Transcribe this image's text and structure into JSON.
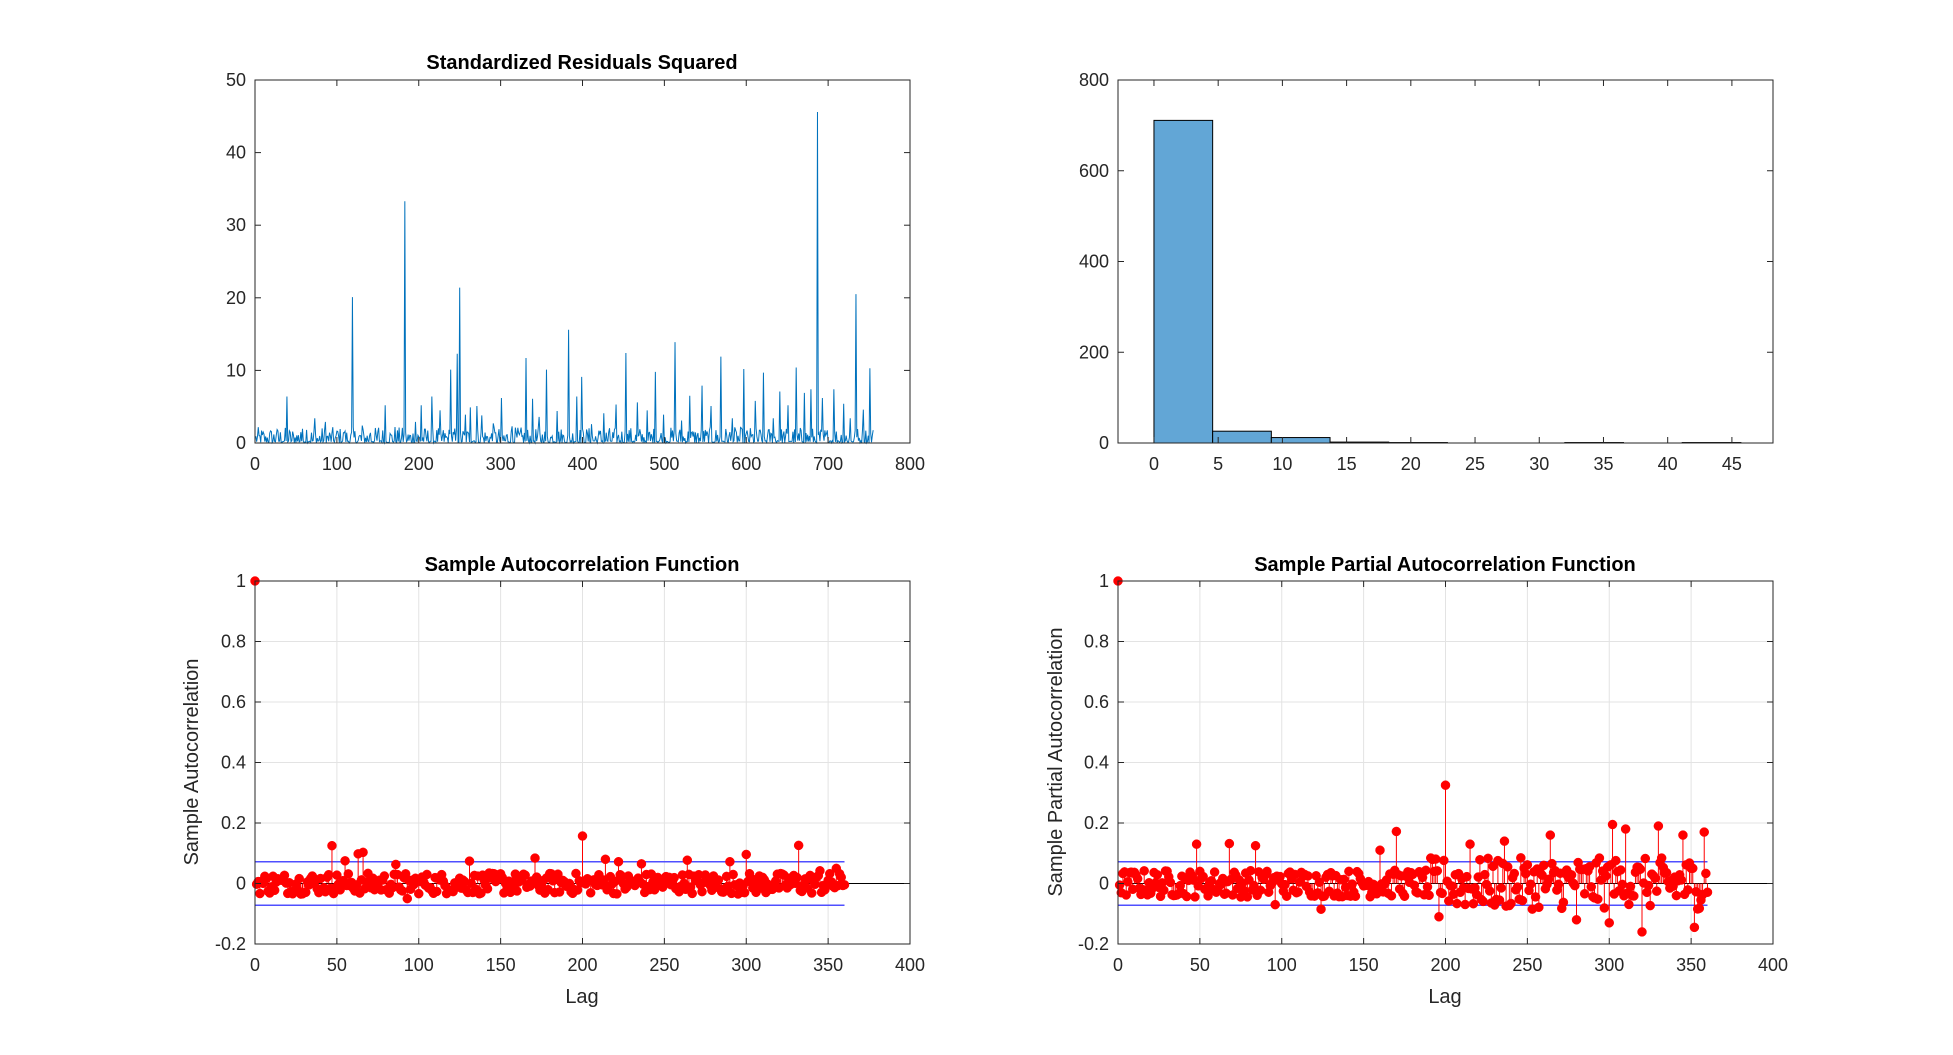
{
  "colors": {
    "line": "#0072BD",
    "hist_fill": "#62A6D6",
    "stem": "#FF0000",
    "bounds": "#4F4FFF",
    "axis": "#262626",
    "grid": "#E3E3E3"
  },
  "chart_data": [
    {
      "id": "residuals",
      "type": "line",
      "title": "Standardized Residuals Squared",
      "xlabel": "",
      "ylabel": "",
      "xlim": [
        0,
        800
      ],
      "ylim": [
        0,
        50
      ],
      "xticks": [
        "0",
        "100",
        "200",
        "300",
        "400",
        "500",
        "600",
        "700",
        "800"
      ],
      "yticks": [
        "0",
        "10",
        "20",
        "30",
        "40",
        "50"
      ],
      "grid": false,
      "n": 755,
      "spikes": [
        [
          12,
          0.9
        ],
        [
          25,
          1.1
        ],
        [
          38,
          6.4
        ],
        [
          55,
          1.5
        ],
        [
          62,
          1.8
        ],
        [
          72,
          3.4
        ],
        [
          85,
          2.9
        ],
        [
          100,
          1.6
        ],
        [
          108,
          1.4
        ],
        [
          118,
          20.1
        ],
        [
          130,
          2.4
        ],
        [
          140,
          1.4
        ],
        [
          150,
          2.1
        ],
        [
          158,
          5.2
        ],
        [
          170,
          2.2
        ],
        [
          182,
          33.3
        ],
        [
          195,
          2.9
        ],
        [
          202,
          5.2
        ],
        [
          215,
          6.4
        ],
        [
          225,
          4.5
        ],
        [
          238,
          10.1
        ],
        [
          246,
          12.3
        ],
        [
          249,
          21.4
        ],
        [
          256,
          3.9
        ],
        [
          262,
          4.9
        ],
        [
          270,
          5.1
        ],
        [
          276,
          3.8
        ],
        [
          290,
          2.7
        ],
        [
          300,
          6.2
        ],
        [
          313,
          2.3
        ],
        [
          330,
          11.7
        ],
        [
          338,
          6.1
        ],
        [
          346,
          3.6
        ],
        [
          355,
          10.1
        ],
        [
          368,
          4.4
        ],
        [
          382,
          15.6
        ],
        [
          392,
          6.4
        ],
        [
          398,
          9.1
        ],
        [
          410,
          2.6
        ],
        [
          425,
          4.1
        ],
        [
          440,
          5.3
        ],
        [
          452,
          12.4
        ],
        [
          466,
          5.6
        ],
        [
          478,
          4.5
        ],
        [
          488,
          9.8
        ],
        [
          498,
          3.9
        ],
        [
          512,
          13.9
        ],
        [
          520,
          3.1
        ],
        [
          530,
          6.5
        ],
        [
          545,
          7.9
        ],
        [
          556,
          5.1
        ],
        [
          568,
          11.9
        ],
        [
          582,
          3.4
        ],
        [
          596,
          10.2
        ],
        [
          610,
          5.8
        ],
        [
          620,
          9.7
        ],
        [
          632,
          3.4
        ],
        [
          640,
          7.1
        ],
        [
          650,
          5.2
        ],
        [
          660,
          10.4
        ],
        [
          670,
          6.9
        ],
        [
          678,
          7.4
        ],
        [
          686,
          45.6
        ],
        [
          692,
          6.2
        ],
        [
          706,
          7.4
        ],
        [
          718,
          5.4
        ],
        [
          726,
          3.4
        ],
        [
          733,
          20.5
        ],
        [
          742,
          4.6
        ],
        [
          750,
          10.3
        ]
      ]
    },
    {
      "id": "histogram",
      "type": "bar",
      "title": "",
      "xlabel": "",
      "ylabel": "",
      "xlim": [
        -2.8,
        48.2
      ],
      "ylim": [
        0,
        800
      ],
      "xticks": [
        "0",
        "5",
        "10",
        "15",
        "20",
        "25",
        "30",
        "35",
        "40",
        "45"
      ],
      "yticks": [
        "0",
        "200",
        "400",
        "600",
        "800"
      ],
      "grid": false,
      "bin_edges": [
        0,
        4.57,
        9.14,
        13.71,
        18.28,
        22.85,
        27.42,
        31.99,
        36.56,
        41.13,
        45.7
      ],
      "counts": [
        711,
        26,
        12,
        2,
        1,
        0,
        0,
        1,
        0,
        1
      ]
    },
    {
      "id": "acf",
      "type": "stem",
      "title": "Sample Autocorrelation Function",
      "xlabel": "Lag",
      "ylabel": "Sample Autocorrelation",
      "xlim": [
        0,
        400
      ],
      "ylim": [
        -0.2,
        1
      ],
      "xticks": [
        "0",
        "50",
        "100",
        "150",
        "200",
        "250",
        "300",
        "350",
        "400"
      ],
      "yticks": [
        "-0.2",
        "0",
        "0.2",
        "0.4",
        "0.6",
        "0.8",
        "1"
      ],
      "grid": true,
      "num_lags": 360,
      "bounds": [
        0.072,
        -0.072
      ],
      "values_sampled": [
        [
          0,
          1.0
        ],
        [
          47,
          0.125
        ],
        [
          55,
          0.075
        ],
        [
          63,
          0.098
        ],
        [
          66,
          0.103
        ],
        [
          86,
          0.063
        ],
        [
          93,
          -0.05
        ],
        [
          131,
          0.074
        ],
        [
          150,
          0.032
        ],
        [
          171,
          0.084
        ],
        [
          200,
          0.157
        ],
        [
          214,
          0.08
        ],
        [
          222,
          0.072
        ],
        [
          236,
          0.065
        ],
        [
          264,
          0.077
        ],
        [
          290,
          0.072
        ],
        [
          300,
          0.096
        ],
        [
          332,
          0.126
        ],
        [
          345,
          0.042
        ],
        [
          355,
          0.05
        ]
      ]
    },
    {
      "id": "pacf",
      "type": "stem",
      "title": "Sample Partial Autocorrelation Function",
      "xlabel": "Lag",
      "ylabel": "Sample Partial Autocorrelation",
      "xlim": [
        0,
        400
      ],
      "ylim": [
        -0.2,
        1
      ],
      "xticks": [
        "0",
        "50",
        "100",
        "150",
        "200",
        "250",
        "300",
        "350",
        "400"
      ],
      "yticks": [
        "-0.2",
        "0",
        "0.2",
        "0.4",
        "0.6",
        "0.8",
        "1"
      ],
      "grid": true,
      "num_lags": 360,
      "bounds": [
        0.072,
        -0.072
      ],
      "values_sampled": [
        [
          0,
          1.0
        ],
        [
          48,
          0.13
        ],
        [
          68,
          0.132
        ],
        [
          84,
          0.125
        ],
        [
          96,
          -0.07
        ],
        [
          124,
          -0.085
        ],
        [
          160,
          0.11
        ],
        [
          170,
          0.172
        ],
        [
          196,
          -0.11
        ],
        [
          200,
          0.325
        ],
        [
          215,
          0.13
        ],
        [
          236,
          0.14
        ],
        [
          264,
          0.16
        ],
        [
          280,
          -0.12
        ],
        [
          300,
          -0.13
        ],
        [
          302,
          0.195
        ],
        [
          310,
          0.18
        ],
        [
          320,
          -0.16
        ],
        [
          330,
          0.19
        ],
        [
          345,
          0.16
        ],
        [
          352,
          -0.145
        ],
        [
          358,
          0.17
        ]
      ]
    }
  ]
}
